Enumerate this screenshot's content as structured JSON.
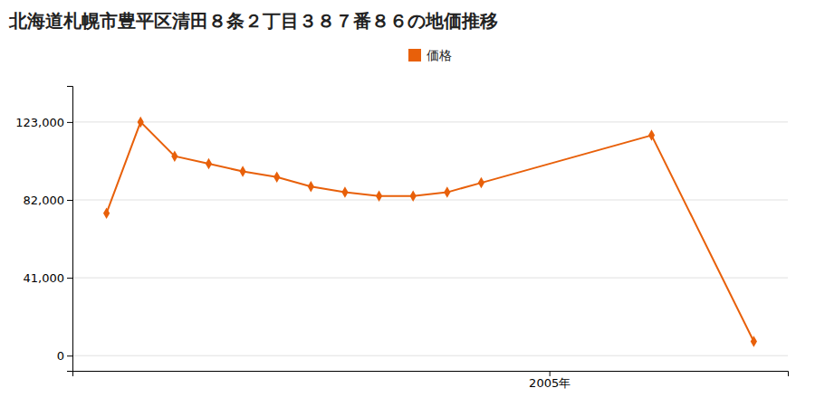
{
  "chart_data": {
    "type": "line",
    "title": "北海道札幌市豊平区清田８条２丁目３８７番８６の地価推移",
    "x": [
      1992,
      1993,
      1994,
      1995,
      1996,
      1997,
      1998,
      1999,
      2000,
      2001,
      2002,
      2003,
      2008,
      2011
    ],
    "series": [
      {
        "name": "価格",
        "color": "#e8600a",
        "marker": "diamond",
        "values": [
          75000,
          123000,
          105000,
          101000,
          97000,
          94000,
          89000,
          86000,
          84000,
          84000,
          86000,
          91000,
          116000,
          7500
        ]
      }
    ],
    "xlim": [
      1991,
      2012
    ],
    "xticks": [
      {
        "value": 2005,
        "label": "2005年"
      }
    ],
    "ylim": [
      -8000,
      142000
    ],
    "yticks": [
      0,
      {
        "value": 41000,
        "label": "41,000"
      },
      {
        "value": 82000,
        "label": "82,000"
      },
      {
        "value": 123000,
        "label": "123,000"
      }
    ],
    "grid": true,
    "legend": "top"
  }
}
